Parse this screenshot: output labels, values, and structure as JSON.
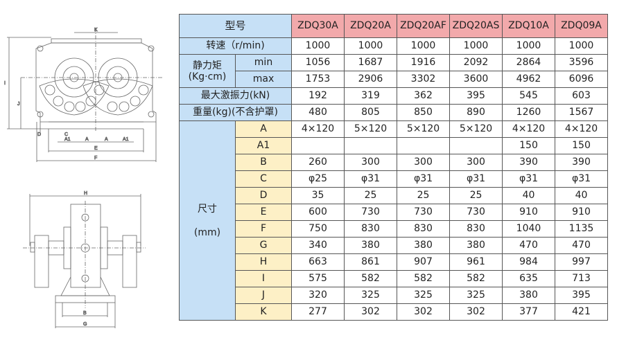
{
  "drawing_labels": {
    "front": [
      "K",
      "I",
      "J",
      "D",
      "C",
      "A1",
      "A",
      "A",
      "A1",
      "E",
      "F"
    ],
    "side": [
      "H",
      "B",
      "G"
    ]
  },
  "table": {
    "header_label": "型号",
    "models": [
      "ZDQ30A",
      "ZDQ20A",
      "ZDQ20AF",
      "ZDQ20AS",
      "ZDQ10A",
      "ZDQ09A"
    ],
    "speed": {
      "label": "转速（r/min)",
      "values": [
        "1000",
        "1000",
        "1000",
        "1000",
        "1000",
        "1000"
      ]
    },
    "torque": {
      "label": "静力矩",
      "unit": "(Kg·cm)",
      "min": {
        "label": "min",
        "values": [
          "1056",
          "1687",
          "1916",
          "2092",
          "2864",
          "3596"
        ]
      },
      "max": {
        "label": "max",
        "values": [
          "1753",
          "2906",
          "3302",
          "3600",
          "4962",
          "6096"
        ]
      }
    },
    "force": {
      "label": "最大激振力(kN)",
      "values": [
        "192",
        "319",
        "362",
        "395",
        "545",
        "603"
      ]
    },
    "weight": {
      "label": "重量(kg)(不含护罩)",
      "values": [
        "480",
        "805",
        "850",
        "890",
        "1260",
        "1567"
      ]
    },
    "dimensions": {
      "label": "尺寸",
      "unit": "(mm)",
      "rows": [
        {
          "name": "A",
          "values": [
            "4×120",
            "5×120",
            "5×120",
            "5×120",
            "4×120",
            "4×120"
          ]
        },
        {
          "name": "A1",
          "values": [
            "",
            "",
            "",
            "",
            "150",
            "150"
          ]
        },
        {
          "name": "B",
          "values": [
            "260",
            "300",
            "300",
            "300",
            "390",
            "390"
          ]
        },
        {
          "name": "C",
          "values": [
            "φ25",
            "φ31",
            "φ31",
            "φ31",
            "φ31",
            "φ31"
          ]
        },
        {
          "name": "D",
          "values": [
            "35",
            "25",
            "25",
            "25",
            "40",
            "40"
          ]
        },
        {
          "name": "E",
          "values": [
            "600",
            "730",
            "730",
            "730",
            "910",
            "910"
          ]
        },
        {
          "name": "F",
          "values": [
            "750",
            "830",
            "830",
            "830",
            "1040",
            "1135"
          ]
        },
        {
          "name": "G",
          "values": [
            "340",
            "380",
            "380",
            "380",
            "470",
            "470"
          ]
        },
        {
          "name": "H",
          "values": [
            "663",
            "861",
            "907",
            "961",
            "984",
            "997"
          ]
        },
        {
          "name": "I",
          "values": [
            "575",
            "582",
            "582",
            "582",
            "635",
            "713"
          ]
        },
        {
          "name": "J",
          "values": [
            "320",
            "325",
            "325",
            "325",
            "380",
            "395"
          ]
        },
        {
          "name": "K",
          "values": [
            "277",
            "302",
            "302",
            "302",
            "377",
            "421"
          ]
        }
      ]
    }
  },
  "colors": {
    "header_blue": "#c6e0f6",
    "model_pink": "#f2a9ab",
    "dimension_yellow": "#fdf0c6",
    "border": "#555555"
  }
}
